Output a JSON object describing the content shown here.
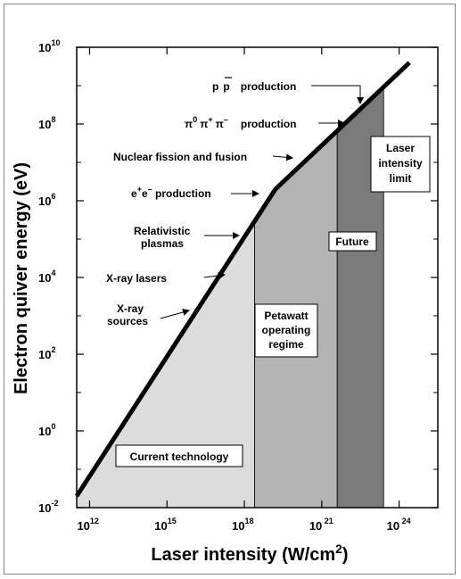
{
  "chart_data": {
    "type": "area",
    "xlabel": "Laser intensity (W/cm",
    "xlabel_sup": "2",
    "xlabel_end": ")",
    "ylabel": "Electron quiver energy (eV)",
    "x_scale": "log10",
    "y_scale": "log10",
    "xlim_log10": [
      11.5,
      25.5
    ],
    "ylim_log10": [
      -2,
      10
    ],
    "x_ticks": [
      {
        "base": "10",
        "exp": "12",
        "pos": 12
      },
      {
        "base": "10",
        "exp": "15",
        "pos": 15
      },
      {
        "base": "10",
        "exp": "18",
        "pos": 18
      },
      {
        "base": "10",
        "exp": " 21",
        "pos": 21
      },
      {
        "base": "10",
        "exp": " 24",
        "pos": 24
      }
    ],
    "y_ticks": [
      {
        "base": "10",
        "exp": "-2",
        "pos": -2
      },
      {
        "base": "10",
        "exp": "0",
        "pos": 0
      },
      {
        "base": "10",
        "exp": "2",
        "pos": 2
      },
      {
        "base": "10",
        "exp": "4",
        "pos": 4
      },
      {
        "base": "10",
        "exp": "6",
        "pos": 6
      },
      {
        "base": "10",
        "exp": "8",
        "pos": 8
      },
      {
        "base": "10",
        "exp": "10",
        "pos": 10
      }
    ],
    "series": [
      {
        "x_log10": [
          11.5,
          19.2,
          24.4
        ],
        "y_log10": [
          -1.7,
          6.3,
          9.6
        ]
      }
    ],
    "regions": [
      {
        "label": "Current technology",
        "x_from": 11.5,
        "x_to": 18.4,
        "color": "#dcdcdc"
      },
      {
        "label": "Petawatt operating regime",
        "x_from": 18.4,
        "x_to": 21.6,
        "color": "#b4b4b4"
      },
      {
        "label": "Future",
        "x_from": 21.6,
        "x_to": 23.4,
        "color": "#7a7a7a"
      }
    ],
    "annotations": [
      {
        "text": "p p  production",
        "x_log10": 23.7,
        "y_log10": 9.1
      },
      {
        "text": "π⁰ π⁺ π⁻  production",
        "x_log10": 22.9,
        "y_log10": 8.0
      },
      {
        "text": "Nuclear fission and fusion",
        "x_log10": 21.8,
        "y_log10": 7.0
      },
      {
        "text": "e⁺e⁻ production",
        "x_log10": 19.0,
        "y_log10": 6.0
      },
      {
        "text": "Relativistic plasmas",
        "x_log10": 18.3,
        "y_log10": 4.8
      },
      {
        "text": "X-ray lasers",
        "x_log10": 17.1,
        "y_log10": 4.0
      },
      {
        "text": "X-ray sources",
        "x_log10": 16.2,
        "y_log10": 3.0
      }
    ]
  },
  "labels": {
    "pp_a": "p",
    "pp_b": "p",
    "pp_c": "production",
    "pi_a": "π",
    "pi_a_sup": "0",
    "pi_b": "π",
    "pi_b_sup": "+",
    "pi_c": "π",
    "pi_c_sup": "–",
    "pi_d": "production",
    "fission": "Nuclear fission and fusion",
    "ee": "e",
    "ee_sup1": "+",
    "ee_mid": "e",
    "ee_sup2": "–",
    "ee_end": " production",
    "rel_1": "Relativistic",
    "rel_2": "plasmas",
    "xray_lasers": "X-ray lasers",
    "xray_src_1": "X-ray",
    "xray_src_2": "sources",
    "current": "Current technology",
    "petawatt_1": "Petawatt",
    "petawatt_2": "operating",
    "petawatt_3": "regime",
    "future": "Future",
    "limit_1": "Laser",
    "limit_2": "intensity",
    "limit_3": "limit"
  }
}
